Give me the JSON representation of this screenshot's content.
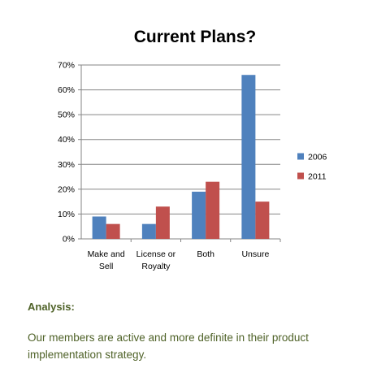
{
  "chart_data": {
    "type": "bar",
    "title": "Current Plans?",
    "categories": [
      [
        "Make and",
        "Sell"
      ],
      [
        "License or",
        "Royalty"
      ],
      [
        "Both"
      ],
      [
        "Unsure"
      ]
    ],
    "series": [
      {
        "name": "2006",
        "color": "#4f81bd",
        "values": [
          9,
          6,
          19,
          66
        ]
      },
      {
        "name": "2011",
        "color": "#c0504d",
        "values": [
          6,
          13,
          23,
          15
        ]
      }
    ],
    "ylim": [
      0,
      70
    ],
    "yticks": [
      "0%",
      "10%",
      "20%",
      "30%",
      "40%",
      "50%",
      "60%",
      "70%"
    ],
    "grid": true,
    "legend": "right"
  },
  "analysis": {
    "heading": "Analysis:",
    "text": "Our members are active and more definite in their product implementation strategy."
  }
}
